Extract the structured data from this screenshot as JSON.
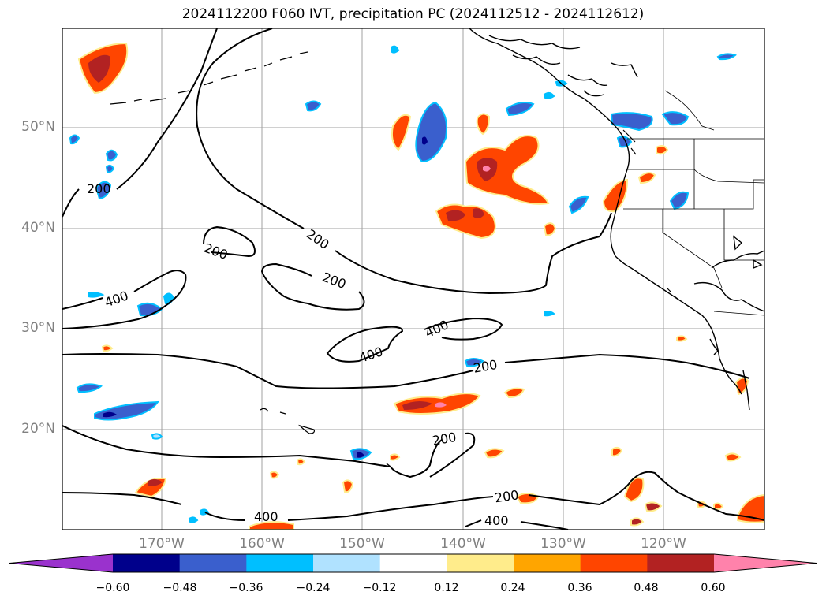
{
  "title": "2024112200 F060 IVT, precipitation PC (2024112512 - 2024112612)",
  "lat_labels": [
    "50°N",
    "40°N",
    "30°N",
    "20°N"
  ],
  "lon_labels": [
    "170°W",
    "160°W",
    "150°W",
    "140°W",
    "130°W",
    "120°W"
  ],
  "contour_labels": [
    "200",
    "200",
    "200",
    "200",
    "400",
    "400",
    "400",
    "200",
    "200",
    "200",
    "400",
    "400"
  ],
  "colorbar": {
    "ticks": [
      "−0.60",
      "−0.48",
      "−0.36",
      "−0.24",
      "−0.12",
      "0.12",
      "0.24",
      "0.36",
      "0.48",
      "0.60"
    ],
    "colors": [
      "#9a32cd",
      "#00008b",
      "#3a5fcd",
      "#00bfff",
      "#b0e2ff",
      "#ffffff",
      "#ffec8b",
      "#ffa500",
      "#ff4500",
      "#b22222",
      "#ff82ab"
    ]
  }
}
